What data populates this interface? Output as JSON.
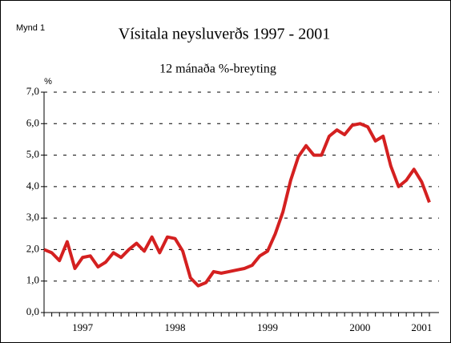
{
  "chart_data": {
    "type": "line",
    "figure_label": "Mynd 1",
    "title": "Vísitala neysluverðs 1997 - 2001",
    "subtitle": "12 mánaða %-breyting",
    "y_unit": "%",
    "categories": [
      null,
      null,
      null,
      null,
      null,
      "1997",
      null,
      null,
      null,
      null,
      null,
      null,
      null,
      null,
      null,
      null,
      null,
      "1998",
      null,
      null,
      null,
      null,
      null,
      null,
      null,
      null,
      null,
      null,
      null,
      "1999",
      null,
      null,
      null,
      null,
      null,
      null,
      null,
      null,
      null,
      null,
      null,
      "2000",
      null,
      null,
      null,
      null,
      null,
      null,
      null,
      "2001",
      null
    ],
    "series": [
      {
        "name": "12 mánaða %-breyting",
        "color": "#d42020",
        "values": [
          2.0,
          1.9,
          1.65,
          2.25,
          1.4,
          1.75,
          1.8,
          1.45,
          1.6,
          1.9,
          1.75,
          2.0,
          2.2,
          1.95,
          2.4,
          1.9,
          2.4,
          2.35,
          1.95,
          1.1,
          0.85,
          0.95,
          1.3,
          1.25,
          1.3,
          1.35,
          1.4,
          1.5,
          1.8,
          1.95,
          2.5,
          3.2,
          4.2,
          4.95,
          5.3,
          5.0,
          5.0,
          5.6,
          5.8,
          5.65,
          5.95,
          6.0,
          5.9,
          5.45,
          5.6,
          4.65,
          4.0,
          4.2,
          4.55,
          4.15,
          3.5
        ]
      }
    ],
    "ylim": [
      0,
      7
    ],
    "yticks": [
      {
        "value": 0,
        "label": "0,0"
      },
      {
        "value": 1,
        "label": "1,0"
      },
      {
        "value": 2,
        "label": "2,0"
      },
      {
        "value": 3,
        "label": "3,0"
      },
      {
        "value": 4,
        "label": "4,0"
      },
      {
        "value": 5,
        "label": "5,0"
      },
      {
        "value": 6,
        "label": "6,0"
      },
      {
        "value": 7,
        "label": "7,0"
      }
    ],
    "grid": true
  }
}
